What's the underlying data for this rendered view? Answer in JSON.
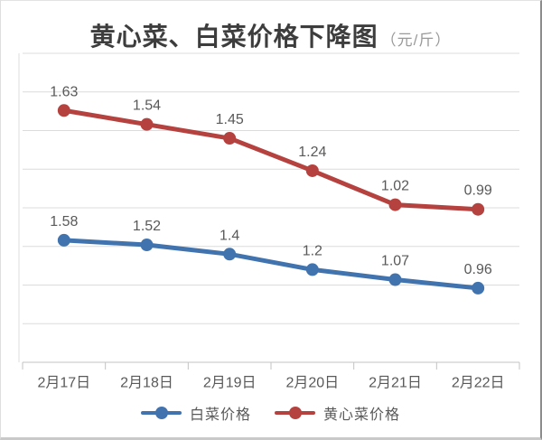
{
  "title": {
    "main": "黄心菜、白菜价格下降图",
    "unit": "（元/斤）"
  },
  "chart_data": {
    "type": "line",
    "title": "黄心菜、白菜价格下降图（元/斤）",
    "xlabel": "",
    "ylabel": "",
    "categories": [
      "2月17日",
      "2月18日",
      "2月19日",
      "2月20日",
      "2月21日",
      "2月22日"
    ],
    "series": [
      {
        "name": "白菜价格",
        "color": "#4173ae",
        "values": [
          1.58,
          1.52,
          1.4,
          1.2,
          1.07,
          0.96
        ],
        "axis_min": 0,
        "axis_max": 4
      },
      {
        "name": "黄心菜价格",
        "color": "#b5423f",
        "values": [
          1.63,
          1.54,
          1.45,
          1.24,
          1.02,
          0.99
        ],
        "axis_min": 0,
        "axis_max": 2
      }
    ],
    "grid": true,
    "gridline_intervals": 8,
    "axes_tick_labels_hidden": true,
    "legend_position": "bottom",
    "data_labels": true,
    "colors": {
      "gridline": "#dcdcdc",
      "axis": "#c3c3c3",
      "label": "#595959"
    }
  }
}
